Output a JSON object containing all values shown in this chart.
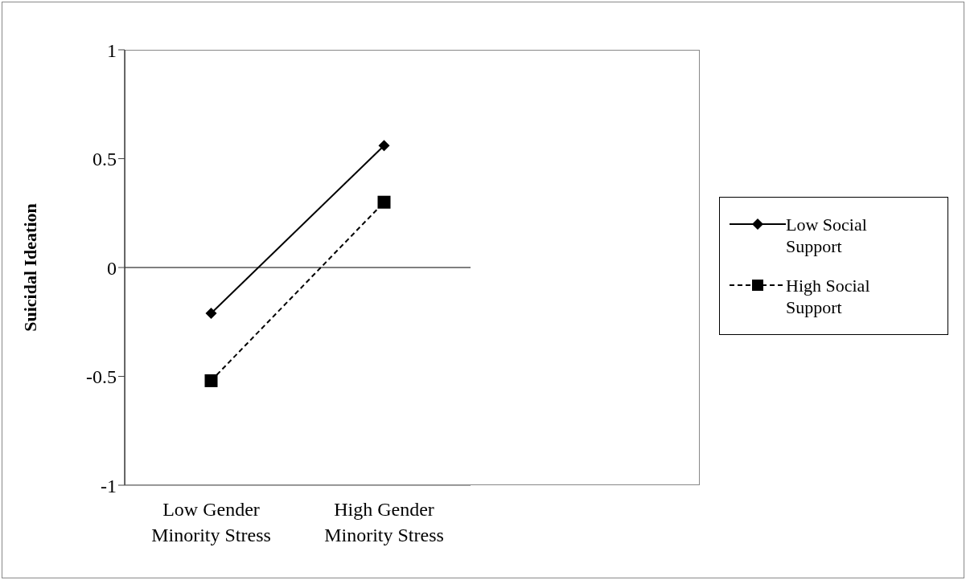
{
  "chart_data": {
    "type": "line",
    "ylabel": "Suicidal Ideation",
    "categories": [
      "Low Gender Minority Stress",
      "High Gender Minority Stress"
    ],
    "series": [
      {
        "name": "Low Social Support",
        "color": "#000000",
        "values": [
          -0.21,
          0.56
        ],
        "marker": "diamond",
        "line_style": "solid"
      },
      {
        "name": "High Social Support",
        "color": "#000000",
        "values": [
          -0.52,
          0.3
        ],
        "marker": "square",
        "line_style": "dashed"
      }
    ],
    "ylim": [
      -1,
      1
    ],
    "yticks": [
      -1,
      -0.5,
      0,
      0.5,
      1
    ],
    "ref_lines": [
      {
        "axis": "y",
        "value": 0,
        "color": "#000000"
      }
    ],
    "legend": "right",
    "grid": false
  }
}
